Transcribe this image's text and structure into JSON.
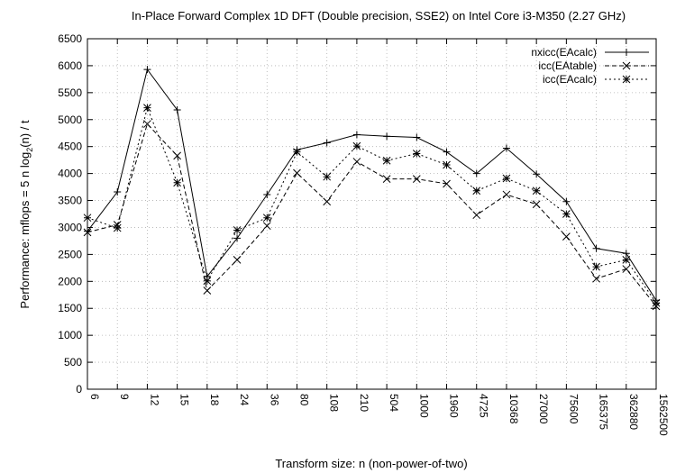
{
  "chart_data": {
    "type": "line",
    "title": "In-Place Forward Complex 1D DFT (Double precision, SSE2) on Intel Core i3-M350 (2.27 GHz)",
    "xlabel": "Transform size: n (non-power-of-two)",
    "ylabel_prefix": "Performance: mflops = 5 n log",
    "ylabel_sub": "2",
    "ylabel_suffix": "(n) / t",
    "ylim": [
      0,
      6500
    ],
    "ytick_step": 500,
    "yticks": [
      "0",
      "500",
      "1000",
      "1500",
      "2000",
      "2500",
      "3000",
      "3500",
      "4000",
      "4500",
      "5000",
      "5500",
      "6000",
      "6500"
    ],
    "categories": [
      "6",
      "9",
      "12",
      "15",
      "18",
      "24",
      "36",
      "80",
      "108",
      "210",
      "504",
      "1000",
      "1960",
      "4725",
      "10368",
      "27000",
      "75600",
      "165375",
      "362880",
      "1562500"
    ],
    "grid": true,
    "legend_position": "top-right",
    "series": [
      {
        "name": "nxicc(EAcalc)",
        "marker": "plus",
        "dash": "",
        "values": [
          2930,
          3660,
          5930,
          5180,
          2090,
          2800,
          3610,
          4440,
          4570,
          4720,
          4690,
          4670,
          4400,
          4000,
          4470,
          3990,
          3480,
          2610,
          2520,
          1650
        ]
      },
      {
        "name": "icc(EAtable)",
        "marker": "cross",
        "dash": "5 3",
        "values": [
          2910,
          3050,
          4920,
          4330,
          1830,
          2400,
          3030,
          4010,
          3480,
          4220,
          3900,
          3900,
          3810,
          3230,
          3610,
          3430,
          2830,
          2050,
          2230,
          1540
        ]
      },
      {
        "name": "icc(EAcalc)",
        "marker": "star",
        "dash": "2 3",
        "values": [
          3180,
          2990,
          5220,
          3830,
          2010,
          2950,
          3180,
          4400,
          3940,
          4510,
          4240,
          4370,
          4160,
          3680,
          3910,
          3680,
          3250,
          2270,
          2400,
          1600
        ]
      }
    ]
  }
}
